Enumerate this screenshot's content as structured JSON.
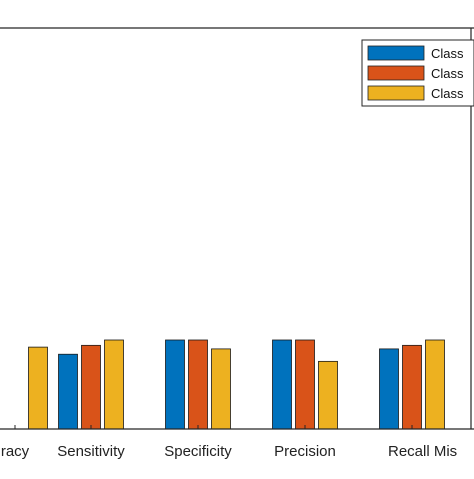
{
  "chart_data": {
    "type": "bar",
    "categories": [
      "Accuracy",
      "Sensitivity",
      "Specificity",
      "Precision",
      "Recall",
      "Mis"
    ],
    "series": [
      {
        "name": "Class",
        "color": "#0072BD",
        "values": [
          null,
          0.92,
          1.0,
          1.0,
          0.95,
          null
        ]
      },
      {
        "name": "Class",
        "color": "#D95319",
        "values": [
          null,
          0.97,
          1.0,
          1.0,
          0.97,
          null
        ]
      },
      {
        "name": "Class",
        "color": "#EDB120",
        "values": [
          0.96,
          1.0,
          0.95,
          0.88,
          1.0,
          null
        ]
      }
    ],
    "ylim": [
      0.5,
      1.0
    ],
    "legend_position": "top-right",
    "grid": false
  },
  "tick_labels": {
    "accuracy": "racy",
    "sensitivity": "Sensitivity",
    "specificity": "Specificity",
    "precision": "Precision",
    "recall_mis": "Recall Mis"
  },
  "legend": {
    "items": [
      {
        "label": "Class",
        "color": "#0072BD"
      },
      {
        "label": "Class",
        "color": "#D95319"
      },
      {
        "label": "Class",
        "color": "#EDB120"
      }
    ]
  }
}
